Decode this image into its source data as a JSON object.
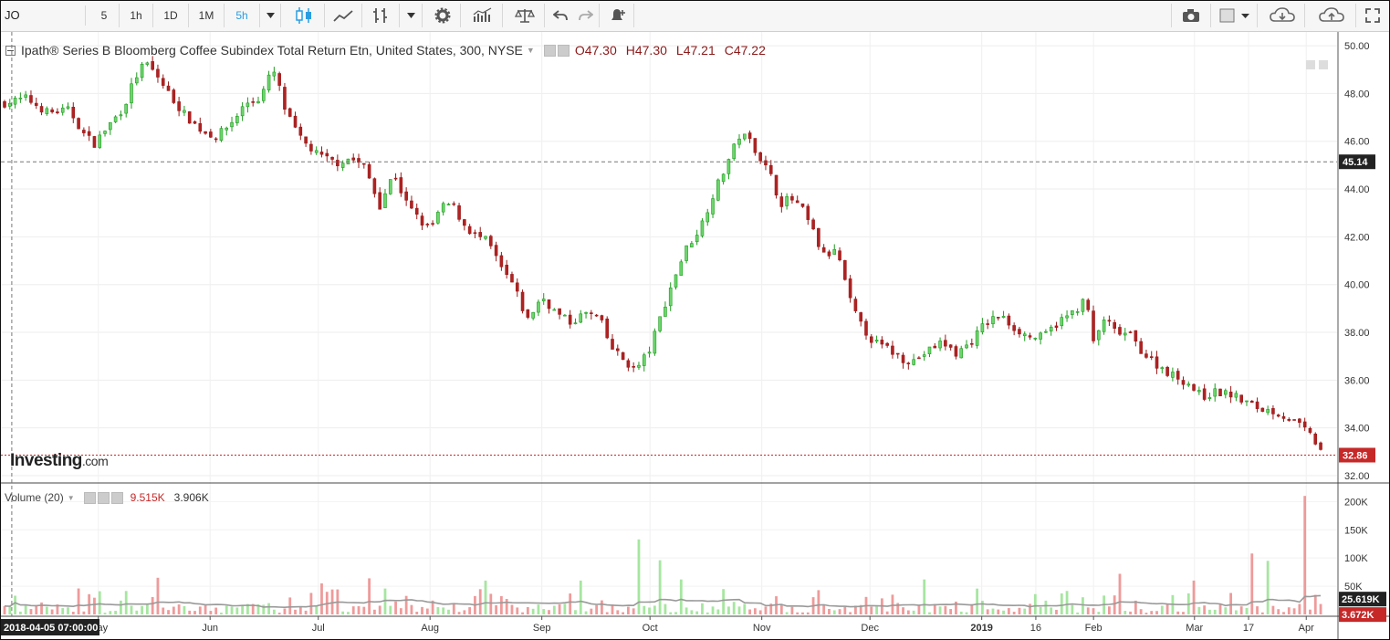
{
  "toolbar": {
    "symbol": "JO",
    "intervals": [
      "5",
      "1h",
      "1D",
      "1M",
      "5h"
    ],
    "active_interval": "5h"
  },
  "legend": {
    "title": "Ipath® Series B Bloomberg Coffee Subindex Total Return Etn, United States, 300, NYSE",
    "open": "O47.30",
    "high": "H47.30",
    "low": "L47.21",
    "close": "C47.22"
  },
  "volume_legend": {
    "label": "Volume (20)",
    "value1": "9.515K",
    "value2": "3.906K"
  },
  "brand": {
    "name": "Investing",
    "suffix": ".com"
  },
  "crosshair": {
    "date_label": "2018-04-05 07:00:00",
    "price_label": "45.14"
  },
  "last_price_label": "32.86",
  "volume_labels": {
    "ma": "25.619K",
    "last": "3.672K"
  },
  "colors": {
    "up": "#1e9b1e",
    "down": "#9b1a1a",
    "up_fill": "#6cd66c",
    "down_fill": "#b02222",
    "vol_up": "#a6e6a0",
    "vol_down": "#ef9a9a",
    "last_price": "#c62828"
  },
  "chart_data": [
    {
      "type": "candlestick",
      "title": "",
      "ylim": [
        32,
        50.5
      ],
      "y_ticks": [
        "32.00",
        "34.00",
        "36.00",
        "38.00",
        "40.00",
        "42.00",
        "44.00",
        "46.00",
        "48.00",
        "50.00"
      ],
      "x_tick_labels": [
        "May",
        "Jun",
        "Jul",
        "Aug",
        "Sep",
        "Oct",
        "Nov",
        "Dec",
        "2019",
        "16",
        "Feb",
        "Mar",
        "17",
        "Apr"
      ],
      "x_tick_days": [
        26,
        57,
        87,
        118,
        149,
        179,
        210,
        240,
        271,
        286,
        302,
        330,
        345,
        361
      ],
      "x_range_days": [
        0,
        366
      ],
      "close_path": [
        [
          0,
          47.6
        ],
        [
          6,
          47.8
        ],
        [
          12,
          47.2
        ],
        [
          18,
          47.3
        ],
        [
          22,
          46.3
        ],
        [
          25,
          45.9
        ],
        [
          28,
          46.5
        ],
        [
          33,
          47.4
        ],
        [
          36,
          48.6
        ],
        [
          39,
          49.3
        ],
        [
          42,
          48.8
        ],
        [
          46,
          47.9
        ],
        [
          50,
          47.1
        ],
        [
          55,
          46.4
        ],
        [
          59,
          46.2
        ],
        [
          63,
          46.8
        ],
        [
          67,
          47.6
        ],
        [
          71,
          47.8
        ],
        [
          73,
          48.6
        ],
        [
          75,
          48.9
        ],
        [
          78,
          47.2
        ],
        [
          82,
          46.1
        ],
        [
          87,
          45.4
        ],
        [
          92,
          45.1
        ],
        [
          96,
          45.3
        ],
        [
          100,
          44.9
        ],
        [
          104,
          43.3
        ],
        [
          108,
          44.7
        ],
        [
          111,
          43.5
        ],
        [
          115,
          42.7
        ],
        [
          118,
          42.3
        ],
        [
          121,
          43.2
        ],
        [
          124,
          43.4
        ],
        [
          127,
          42.6
        ],
        [
          130,
          42.1
        ],
        [
          134,
          41.8
        ],
        [
          138,
          40.6
        ],
        [
          141,
          40.0
        ],
        [
          145,
          38.5
        ],
        [
          149,
          39.5
        ],
        [
          153,
          38.8
        ],
        [
          157,
          38.4
        ],
        [
          161,
          38.8
        ],
        [
          165,
          38.6
        ],
        [
          168,
          37.4
        ],
        [
          172,
          36.8
        ],
        [
          175,
          36.4
        ],
        [
          179,
          37.3
        ],
        [
          182,
          38.7
        ],
        [
          186,
          40.4
        ],
        [
          189,
          41.5
        ],
        [
          193,
          42.4
        ],
        [
          196,
          43.6
        ],
        [
          199,
          44.6
        ],
        [
          201,
          45.3
        ],
        [
          204,
          46.3
        ],
        [
          207,
          46.0
        ],
        [
          210,
          45.2
        ],
        [
          213,
          44.4
        ],
        [
          215,
          43.4
        ],
        [
          218,
          43.6
        ],
        [
          221,
          43.2
        ],
        [
          224,
          42.3
        ],
        [
          227,
          41.2
        ],
        [
          231,
          41.4
        ],
        [
          234,
          39.5
        ],
        [
          237,
          38.4
        ],
        [
          241,
          37.6
        ],
        [
          245,
          37.3
        ],
        [
          249,
          36.9
        ],
        [
          252,
          36.8
        ],
        [
          256,
          37.2
        ],
        [
          260,
          37.6
        ],
        [
          264,
          37.1
        ],
        [
          268,
          37.6
        ],
        [
          272,
          38.4
        ],
        [
          276,
          38.7
        ],
        [
          280,
          38.2
        ],
        [
          284,
          37.8
        ],
        [
          288,
          37.8
        ],
        [
          292,
          38.4
        ],
        [
          296,
          38.8
        ],
        [
          300,
          39.4
        ],
        [
          302,
          37.5
        ],
        [
          305,
          38.6
        ],
        [
          308,
          38.0
        ],
        [
          312,
          37.9
        ],
        [
          316,
          37.1
        ],
        [
          320,
          36.6
        ],
        [
          324,
          36.2
        ],
        [
          328,
          35.9
        ],
        [
          332,
          35.3
        ],
        [
          336,
          35.5
        ],
        [
          340,
          35.4
        ],
        [
          344,
          35.1
        ],
        [
          348,
          34.8
        ],
        [
          352,
          34.7
        ],
        [
          356,
          34.4
        ],
        [
          360,
          34.0
        ],
        [
          362,
          33.7
        ],
        [
          365,
          33.1
        ]
      ]
    },
    {
      "type": "bar",
      "title": "Volume (20)",
      "ylim": [
        0,
        220000
      ],
      "y_ticks": [
        "50K",
        "100K",
        "150K",
        "200K"
      ],
      "spikes": [
        {
          "day": 43,
          "value": 65000
        },
        {
          "day": 88,
          "value": 55000
        },
        {
          "day": 101,
          "value": 64000
        },
        {
          "day": 133,
          "value": 60000
        },
        {
          "day": 160,
          "value": 60000
        },
        {
          "day": 176,
          "value": 133000
        },
        {
          "day": 182,
          "value": 96000
        },
        {
          "day": 187,
          "value": 62000
        },
        {
          "day": 255,
          "value": 62000
        },
        {
          "day": 310,
          "value": 72000
        },
        {
          "day": 330,
          "value": 60000
        },
        {
          "day": 346,
          "value": 108000
        },
        {
          "day": 350,
          "value": 95000
        },
        {
          "day": 361,
          "value": 210000
        }
      ],
      "typical_range": [
        3000,
        30000
      ]
    }
  ]
}
